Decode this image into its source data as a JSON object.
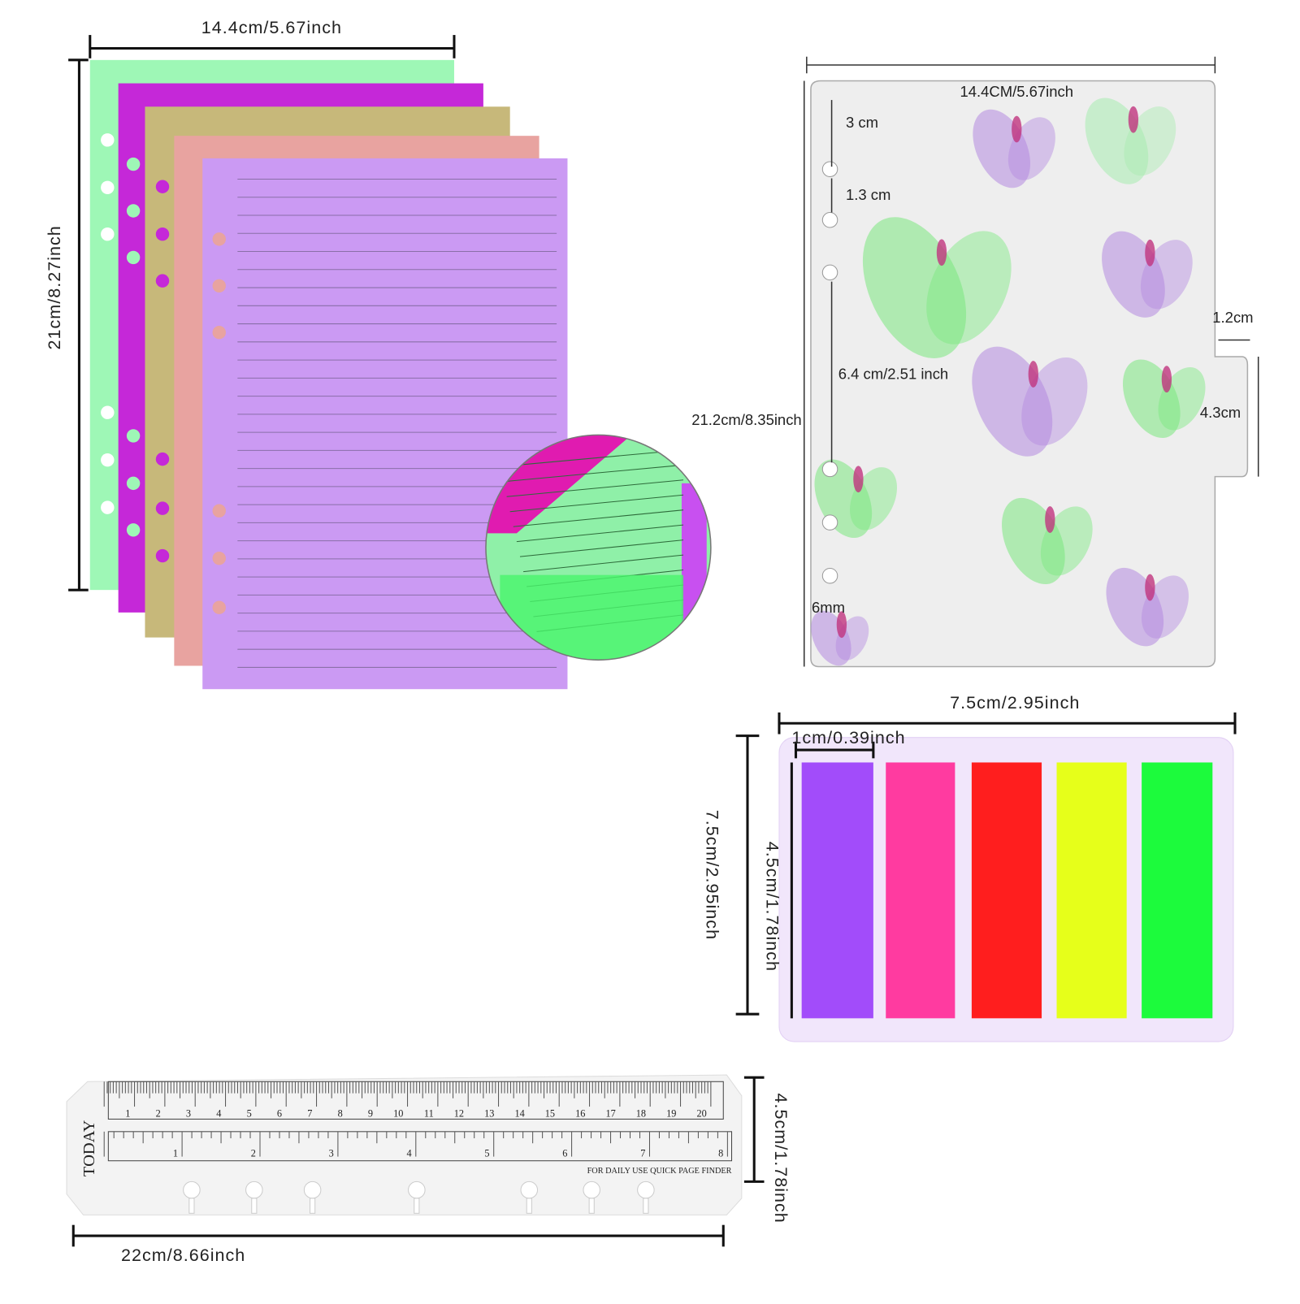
{
  "sheets": {
    "width_label": "14.4cm/5.67inch",
    "height_label": "21cm/8.27inch"
  },
  "divider": {
    "width_label": "14.4CM/5.67inch",
    "hole_top": "3 cm",
    "hole_spacing": "1.3 cm",
    "hole_group": "6.4 cm/2.51 inch",
    "height_label": "21.2cm/8.35inch",
    "tab_width": "1.2cm",
    "tab_height": "4.3cm",
    "hole_size": "6mm"
  },
  "flags": {
    "width_label": "7.5cm/2.95inch",
    "flag_width": "1cm/0.39inch",
    "height_label": "7.5cm/2.95inch",
    "flag_height": "4.5cm/1.78inch"
  },
  "ruler": {
    "brand": "TODAY",
    "cm_numbers": [
      1,
      2,
      3,
      4,
      5,
      6,
      7,
      8,
      9,
      10,
      11,
      12,
      13,
      14,
      15,
      16,
      17,
      18,
      19,
      20
    ],
    "inch_numbers": [
      1,
      2,
      3,
      4,
      5,
      6,
      7,
      8
    ],
    "caption": "FOR DAILY USE QUICK PAGE FINDER",
    "height_label": "4.5cm/1.78inch",
    "width_label": "22cm/8.66inch"
  }
}
